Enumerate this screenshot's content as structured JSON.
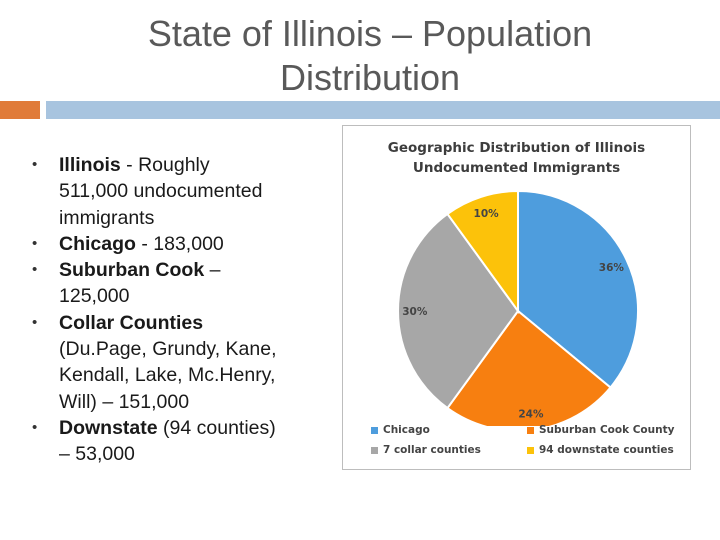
{
  "slide": {
    "title": "State of Illinois – Population Distribution",
    "accent_color": "#e07b39",
    "rule_color": "#a8c4df"
  },
  "bullets": [
    {
      "bold": "Illinois",
      "rest": " - Roughly 511,000 undocumented immigrants"
    },
    {
      "bold": "Chicago",
      "rest": " - 183,000"
    },
    {
      "bold": "Suburban Cook",
      "rest": " – 125,000"
    },
    {
      "bold": "Collar Counties",
      "rest": " (Du.Page, Grundy, Kane, Kendall, Lake, Mc.Henry, Will) – 151,000"
    },
    {
      "bold": "Downstate",
      "rest": " (94 counties) – 53,000"
    }
  ],
  "chart_data": {
    "type": "pie",
    "title": "Geographic Distribution of Illinois Undocumented Immigrants",
    "slices": [
      {
        "label": "Chicago",
        "value": 36,
        "display": "36%",
        "color": "#4e9ddd"
      },
      {
        "label": "Suburban Cook County",
        "value": 24,
        "display": "24%",
        "color": "#f77f10"
      },
      {
        "label": "7 collar counties",
        "value": 30,
        "display": "30%",
        "color": "#a7a7a7"
      },
      {
        "label": "94 downstate counties",
        "value": 10,
        "display": "10%",
        "color": "#fcc20a"
      }
    ],
    "legend_position": "bottom"
  }
}
